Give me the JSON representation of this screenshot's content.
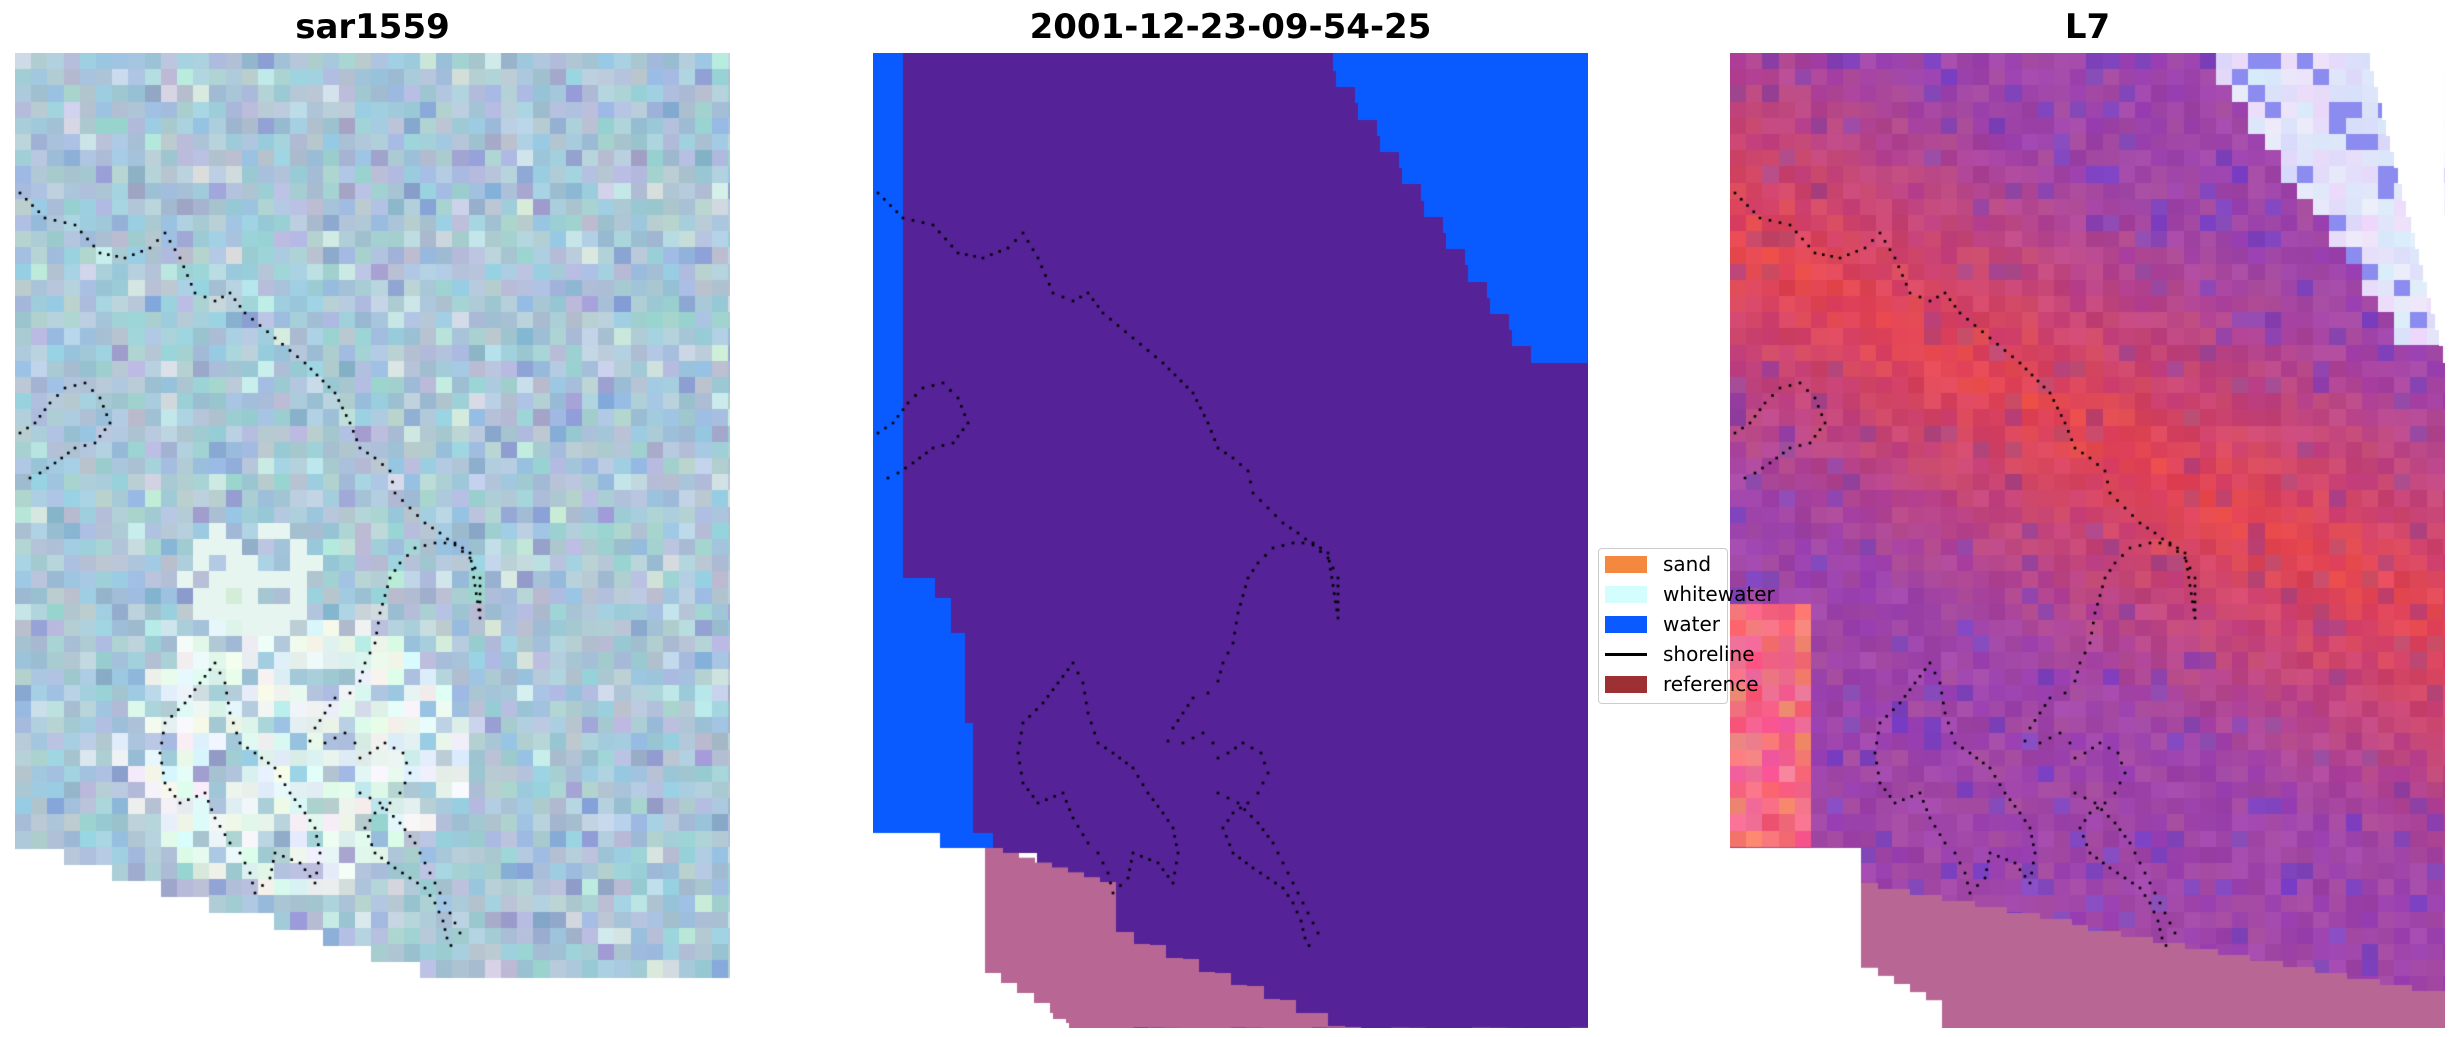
{
  "panels": [
    {
      "title": "sar1559",
      "style": "sar"
    },
    {
      "title": "2001-12-23-09-54-25",
      "style": "classified"
    },
    {
      "title": "L7",
      "style": "l7"
    }
  ],
  "legend": {
    "items": [
      {
        "label": "sand",
        "color": "#f4883f",
        "kind": "patch"
      },
      {
        "label": "whitewater",
        "color": "#d4fdfd",
        "kind": "patch"
      },
      {
        "label": "water",
        "color": "#0a5bff",
        "kind": "patch"
      },
      {
        "label": "shoreline",
        "color": "#000000",
        "kind": "line"
      },
      {
        "label": "reference",
        "color": "#9c3033",
        "kind": "patch"
      }
    ]
  },
  "colors": {
    "land_fill": "#b86694",
    "classified_background": "#552297",
    "water": "#0a5bff",
    "shoreline": "#000000"
  }
}
